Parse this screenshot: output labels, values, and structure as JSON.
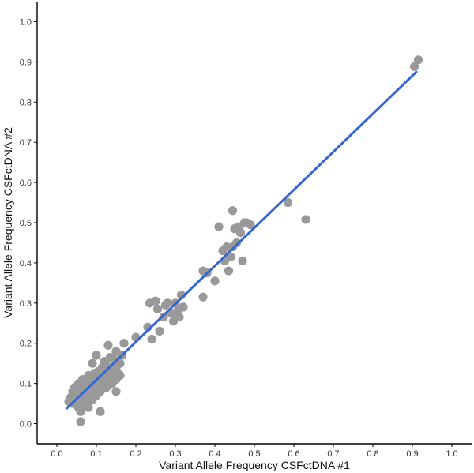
{
  "chart_data": {
    "type": "scatter",
    "title": "",
    "xlabel": "Variant Allele Frequency CSFctDNA #1",
    "ylabel": "Variant Allele Frequency CSFctDNA #2",
    "xlim": [
      -0.05,
      1.05
    ],
    "ylim": [
      -0.05,
      1.05
    ],
    "x_ticks": [
      "0.0",
      "0.1",
      "0.2",
      "0.3",
      "0.4",
      "0.5",
      "0.6",
      "0.7",
      "0.8",
      "0.9",
      "1.0"
    ],
    "y_ticks": [
      "0.0",
      "0.1",
      "0.2",
      "0.3",
      "0.4",
      "0.5",
      "0.6",
      "0.7",
      "0.8",
      "0.9",
      "1.0"
    ],
    "grid": false,
    "point_color": "#999999",
    "line_color": "#3366d6",
    "points": [
      [
        0.03,
        0.055
      ],
      [
        0.035,
        0.065
      ],
      [
        0.04,
        0.05
      ],
      [
        0.04,
        0.08
      ],
      [
        0.045,
        0.09
      ],
      [
        0.05,
        0.06
      ],
      [
        0.05,
        0.075
      ],
      [
        0.055,
        0.04
      ],
      [
        0.055,
        0.1
      ],
      [
        0.06,
        0.03
      ],
      [
        0.06,
        0.06
      ],
      [
        0.06,
        0.09
      ],
      [
        0.06,
        0.005
      ],
      [
        0.065,
        0.11
      ],
      [
        0.065,
        0.045
      ],
      [
        0.07,
        0.07
      ],
      [
        0.07,
        0.1
      ],
      [
        0.075,
        0.055
      ],
      [
        0.075,
        0.085
      ],
      [
        0.08,
        0.04
      ],
      [
        0.08,
        0.1
      ],
      [
        0.08,
        0.12
      ],
      [
        0.085,
        0.07
      ],
      [
        0.085,
        0.09
      ],
      [
        0.09,
        0.06
      ],
      [
        0.09,
        0.15
      ],
      [
        0.09,
        0.11
      ],
      [
        0.095,
        0.08
      ],
      [
        0.095,
        0.1
      ],
      [
        0.1,
        0.07
      ],
      [
        0.1,
        0.12
      ],
      [
        0.1,
        0.09
      ],
      [
        0.1,
        0.17
      ],
      [
        0.105,
        0.1
      ],
      [
        0.105,
        0.13
      ],
      [
        0.11,
        0.03
      ],
      [
        0.11,
        0.08
      ],
      [
        0.11,
        0.11
      ],
      [
        0.115,
        0.095
      ],
      [
        0.115,
        0.14
      ],
      [
        0.12,
        0.1
      ],
      [
        0.12,
        0.12
      ],
      [
        0.12,
        0.155
      ],
      [
        0.125,
        0.09
      ],
      [
        0.125,
        0.11
      ],
      [
        0.13,
        0.105
      ],
      [
        0.13,
        0.13
      ],
      [
        0.13,
        0.195
      ],
      [
        0.135,
        0.12
      ],
      [
        0.135,
        0.165
      ],
      [
        0.14,
        0.1
      ],
      [
        0.14,
        0.14
      ],
      [
        0.14,
        0.12
      ],
      [
        0.145,
        0.13
      ],
      [
        0.145,
        0.16
      ],
      [
        0.15,
        0.08
      ],
      [
        0.15,
        0.11
      ],
      [
        0.15,
        0.14
      ],
      [
        0.15,
        0.18
      ],
      [
        0.155,
        0.125
      ],
      [
        0.16,
        0.12
      ],
      [
        0.16,
        0.15
      ],
      [
        0.17,
        0.2
      ],
      [
        0.165,
        0.17
      ],
      [
        0.05,
        0.085
      ],
      [
        0.07,
        0.085
      ],
      [
        0.08,
        0.065
      ],
      [
        0.09,
        0.095
      ],
      [
        0.1,
        0.105
      ],
      [
        0.11,
        0.125
      ],
      [
        0.12,
        0.135
      ],
      [
        0.13,
        0.115
      ],
      [
        0.06,
        0.075
      ],
      [
        0.075,
        0.095
      ],
      [
        0.085,
        0.11
      ],
      [
        0.095,
        0.125
      ],
      [
        0.105,
        0.085
      ],
      [
        0.115,
        0.115
      ],
      [
        0.125,
        0.145
      ],
      [
        0.135,
        0.105
      ],
      [
        0.2,
        0.215
      ],
      [
        0.23,
        0.24
      ],
      [
        0.235,
        0.3
      ],
      [
        0.24,
        0.21
      ],
      [
        0.25,
        0.305
      ],
      [
        0.255,
        0.285
      ],
      [
        0.26,
        0.23
      ],
      [
        0.27,
        0.265
      ],
      [
        0.275,
        0.295
      ],
      [
        0.28,
        0.3
      ],
      [
        0.29,
        0.275
      ],
      [
        0.295,
        0.255
      ],
      [
        0.3,
        0.3
      ],
      [
        0.305,
        0.28
      ],
      [
        0.31,
        0.265
      ],
      [
        0.315,
        0.32
      ],
      [
        0.32,
        0.29
      ],
      [
        0.37,
        0.315
      ],
      [
        0.37,
        0.38
      ],
      [
        0.38,
        0.375
      ],
      [
        0.4,
        0.355
      ],
      [
        0.41,
        0.49
      ],
      [
        0.42,
        0.43
      ],
      [
        0.425,
        0.405
      ],
      [
        0.43,
        0.44
      ],
      [
        0.435,
        0.38
      ],
      [
        0.44,
        0.415
      ],
      [
        0.445,
        0.53
      ],
      [
        0.445,
        0.44
      ],
      [
        0.45,
        0.485
      ],
      [
        0.455,
        0.45
      ],
      [
        0.46,
        0.49
      ],
      [
        0.465,
        0.475
      ],
      [
        0.47,
        0.405
      ],
      [
        0.475,
        0.5
      ],
      [
        0.48,
        0.5
      ],
      [
        0.49,
        0.495
      ],
      [
        0.585,
        0.55
      ],
      [
        0.63,
        0.508
      ],
      [
        0.905,
        0.888
      ],
      [
        0.915,
        0.905
      ]
    ],
    "fit_line": [
      [
        0.025,
        0.038
      ],
      [
        0.91,
        0.875
      ]
    ]
  }
}
